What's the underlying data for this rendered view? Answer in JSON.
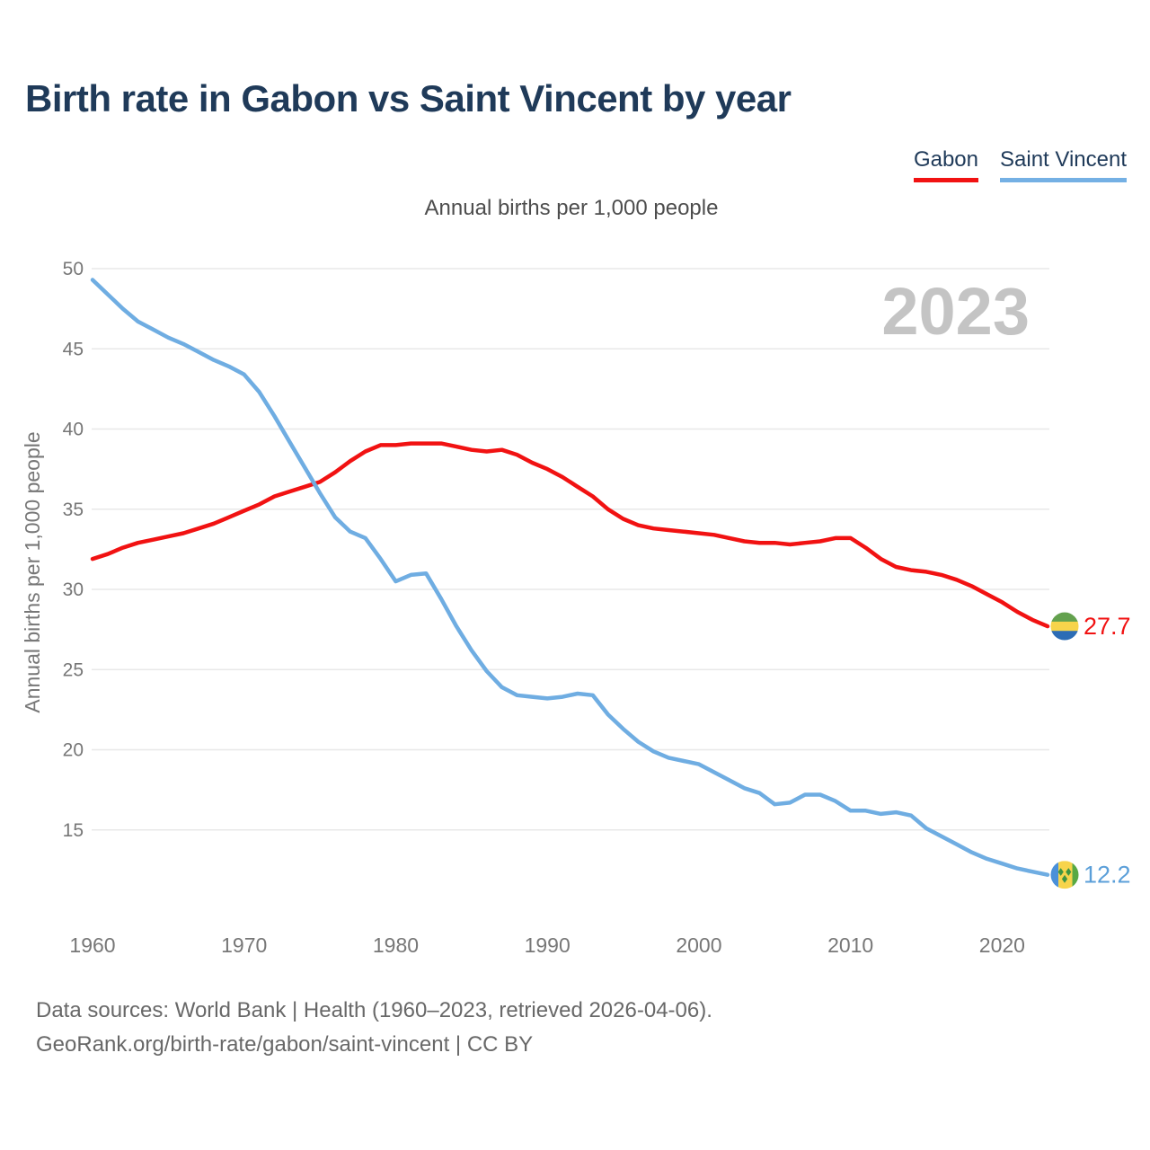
{
  "header": {
    "title": "Birth rate in Gabon vs Saint Vincent by year"
  },
  "legend": {
    "items": [
      {
        "label": "Gabon",
        "color": "#f11212"
      },
      {
        "label": "Saint Vincent",
        "color": "#74b0e4"
      }
    ]
  },
  "footer": {
    "line1": "Data sources: World Bank | Health (1960–2023, retrieved 2026-04-06).",
    "line2": "GeoRank.org/birth-rate/gabon/saint-vincent | CC BY"
  },
  "icons": {
    "gabon_flag": {
      "type": "horizontal-stripes",
      "colors": [
        "#63a14e",
        "#f7d44b",
        "#2c6cb5"
      ]
    },
    "saint_vincent_flag": {
      "type": "vertical-stripes-with-diamonds",
      "colors": [
        "#4a90d9",
        "#f7d44b",
        "#58a944"
      ],
      "diamond_color": "#3f9442"
    }
  },
  "chart_data": {
    "type": "line",
    "title": "Birth rate in Gabon vs Saint Vincent by year",
    "subtitle": "Annual births per 1,000 people",
    "ylabel": "Annual births per 1,000 people",
    "watermark": "2023",
    "grid": true,
    "legend_position": "top-right",
    "ylim": [
      11,
      51
    ],
    "yticks": [
      50,
      45,
      40,
      35,
      30,
      25,
      20,
      15
    ],
    "xticks": [
      1960,
      1970,
      1980,
      1990,
      2000,
      2010,
      2020
    ],
    "x_range": [
      1960,
      2023
    ],
    "x": [
      1960,
      1961,
      1962,
      1963,
      1964,
      1965,
      1966,
      1967,
      1968,
      1969,
      1970,
      1971,
      1972,
      1973,
      1974,
      1975,
      1976,
      1977,
      1978,
      1979,
      1980,
      1981,
      1982,
      1983,
      1984,
      1985,
      1986,
      1987,
      1988,
      1989,
      1990,
      1991,
      1992,
      1993,
      1994,
      1995,
      1996,
      1997,
      1998,
      1999,
      2000,
      2001,
      2002,
      2003,
      2004,
      2005,
      2006,
      2007,
      2008,
      2009,
      2010,
      2011,
      2012,
      2013,
      2014,
      2015,
      2016,
      2017,
      2018,
      2019,
      2020,
      2021,
      2022,
      2023
    ],
    "series": [
      {
        "name": "Gabon",
        "color": "#f11212",
        "end_label": "27.7",
        "end_value": 27.7,
        "values": [
          31.9,
          32.2,
          32.6,
          32.9,
          33.1,
          33.3,
          33.5,
          33.8,
          34.1,
          34.5,
          34.9,
          35.3,
          35.8,
          36.1,
          36.4,
          36.7,
          37.3,
          38.0,
          38.6,
          39.0,
          39.0,
          39.1,
          39.1,
          39.1,
          38.9,
          38.7,
          38.6,
          38.7,
          38.4,
          37.9,
          37.5,
          37.0,
          36.4,
          35.8,
          35.0,
          34.4,
          34.0,
          33.8,
          33.7,
          33.6,
          33.5,
          33.4,
          33.2,
          33.0,
          32.9,
          32.9,
          32.8,
          32.9,
          33.0,
          33.2,
          33.2,
          32.6,
          31.9,
          31.4,
          31.2,
          31.1,
          30.9,
          30.6,
          30.2,
          29.7,
          29.2,
          28.6,
          28.1,
          27.7
        ]
      },
      {
        "name": "Saint Vincent",
        "color": "#6fade2",
        "end_label": "12.2",
        "end_value": 12.2,
        "values": [
          49.3,
          48.4,
          47.5,
          46.7,
          46.2,
          45.7,
          45.3,
          44.8,
          44.3,
          43.9,
          43.4,
          42.3,
          40.8,
          39.2,
          37.6,
          36.0,
          34.5,
          33.6,
          33.2,
          31.9,
          30.5,
          30.9,
          31.0,
          29.4,
          27.7,
          26.2,
          24.9,
          23.9,
          23.4,
          23.3,
          23.2,
          23.3,
          23.5,
          23.4,
          22.2,
          21.3,
          20.5,
          19.9,
          19.5,
          19.3,
          19.1,
          18.6,
          18.1,
          17.6,
          17.3,
          16.6,
          16.7,
          17.2,
          17.2,
          16.8,
          16.2,
          16.2,
          16.0,
          16.1,
          15.9,
          15.1,
          14.6,
          14.1,
          13.6,
          13.2,
          12.9,
          12.6,
          12.4,
          12.2
        ]
      }
    ]
  }
}
